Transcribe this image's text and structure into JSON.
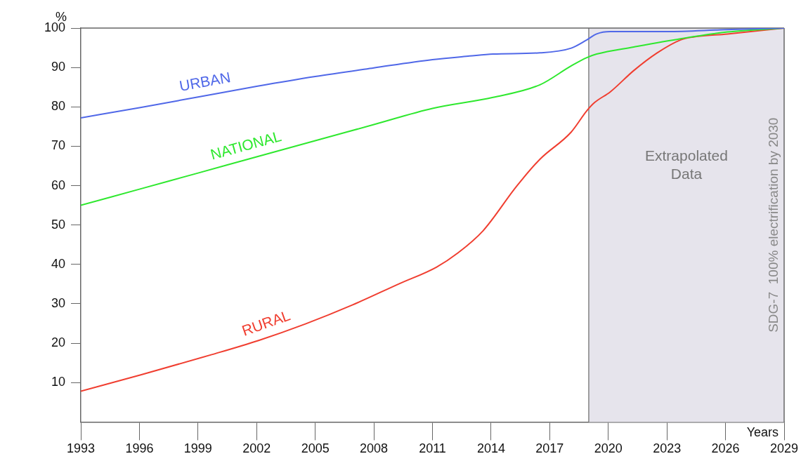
{
  "chart_data": {
    "type": "line",
    "xlabel": "Years",
    "ylabel": "%",
    "xlim": [
      1993,
      2029
    ],
    "xticks": [
      1993,
      1996,
      1999,
      2002,
      2005,
      2008,
      2011,
      2014,
      2017,
      2020,
      2023,
      2026,
      2029
    ],
    "ylim": [
      0,
      100
    ],
    "yticks": [
      10,
      20,
      30,
      40,
      50,
      60,
      70,
      80,
      90,
      100
    ],
    "series": [
      {
        "name": "URBAN",
        "color": "#5068e8",
        "x": [
          1993,
          1996,
          1999,
          2002,
          2005,
          2008,
          2011,
          2012.9,
          2014.1,
          2016.5,
          2018.1,
          2018.9,
          2019.4,
          2020.1,
          2023,
          2026,
          2029
        ],
        "values": [
          77.2,
          79.8,
          82.5,
          85.2,
          87.7,
          89.9,
          92.0,
          92.9,
          93.4,
          93.7,
          94.9,
          97.0,
          98.5,
          99.1,
          99.1,
          99.6,
          100
        ]
      },
      {
        "name": "NATIONAL",
        "color": "#2ee82e",
        "x": [
          1993,
          1996,
          1999,
          2002,
          2005,
          2008,
          2011,
          2014.1,
          2016.5,
          2018.1,
          2018.9,
          2019.4,
          2021.3,
          2023.7,
          2026.1,
          2029
        ],
        "values": [
          55.0,
          59.1,
          63.2,
          67.3,
          71.4,
          75.5,
          79.6,
          82.4,
          85.6,
          90.4,
          92.5,
          93.4,
          95.2,
          97.3,
          99.0,
          100
        ]
      },
      {
        "name": "RURAL",
        "color": "#f03e30",
        "x": [
          1993,
          1996.1,
          1999.7,
          2002.1,
          2004.5,
          2006.9,
          2009.3,
          2011.2,
          2012.3,
          2013.6,
          2015.3,
          2016.5,
          2018.1,
          2018.9,
          2019.3,
          2020.1,
          2021.3,
          2022.5,
          2023.7,
          2024.3,
          2026.1,
          2029
        ],
        "values": [
          7.8,
          12.0,
          17.1,
          20.7,
          24.9,
          29.7,
          35.1,
          39.3,
          42.9,
          48.6,
          59.8,
          66.7,
          73.6,
          79.0,
          81.1,
          83.8,
          89.2,
          93.7,
          97.0,
          97.7,
          98.5,
          100
        ]
      }
    ],
    "bands": [
      {
        "axis": "x",
        "from": 2019,
        "to": 2029,
        "label": "Extrapolated Data",
        "color": "#e6e4ec"
      }
    ],
    "ref_lines": [
      {
        "axis": "x",
        "value": 2019,
        "color": "#666666"
      }
    ],
    "annotations": [
      "SDG-7  100% electrification by 2030"
    ],
    "grid": false,
    "legend": false,
    "marker": "none",
    "line_style": "solid"
  }
}
